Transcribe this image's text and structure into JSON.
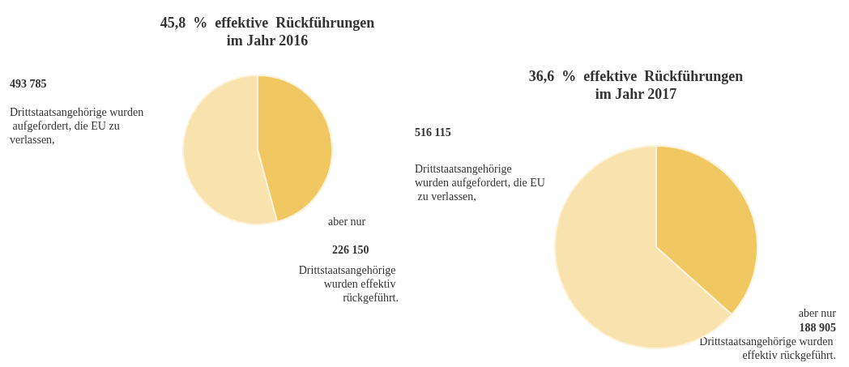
{
  "chart_data": [
    {
      "type": "pie",
      "title": "45,8  %  effektive  Rückführungen\nim Jahr 2016",
      "categories": [
        null,
        null
      ],
      "values": [
        45.8,
        54.2
      ],
      "colors": [
        "#f1c762",
        "#f8e2ad"
      ],
      "annotations": [
        "493 785",
        "Drittstaatsangehörige wurden aufgefordert, die EU zu verlassen,",
        "aber nur",
        "226 150",
        "Drittstaatsangehörige wurden effektiv rückgeführt."
      ]
    },
    {
      "type": "pie",
      "title": "36,6  %  effektive  Rückführungen\nim Jahr 2017",
      "categories": [
        null,
        null
      ],
      "values": [
        36.6,
        63.4
      ],
      "colors": [
        "#f1c762",
        "#f8e2ad"
      ],
      "annotations": [
        "516 115",
        "Drittstaatsangehörige wurden aufgefordert, die EU zu verlassen,",
        "aber nur",
        "188 905",
        "Drittstaatsangehörige wurden effektiv rückgeführt."
      ]
    }
  ]
}
